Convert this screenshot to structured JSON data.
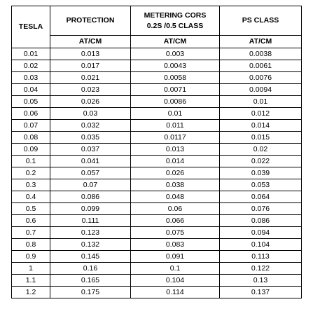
{
  "table": {
    "headers": {
      "tesla": "TESLA",
      "protection": "PROTECTION",
      "metering_line1": "METERING CORS",
      "metering_line2": "0.2S /0.5 CLASS",
      "ps_class": "PS CLASS"
    },
    "units": {
      "protection": "AT/CM",
      "metering": "AT/CM",
      "ps_class": "AT/CM"
    },
    "rows": [
      {
        "tesla": "0.01",
        "protection": "0.013",
        "metering": "0.003",
        "ps": "0.0038"
      },
      {
        "tesla": "0.02",
        "protection": "0.017",
        "metering": "0.0043",
        "ps": "0.0061"
      },
      {
        "tesla": "0.03",
        "protection": "0.021",
        "metering": "0.0058",
        "ps": "0.0076"
      },
      {
        "tesla": "0.04",
        "protection": "0.023",
        "metering": "0.0071",
        "ps": "0.0094"
      },
      {
        "tesla": "0.05",
        "protection": "0.026",
        "metering": "0.0086",
        "ps": "0.01"
      },
      {
        "tesla": "0.06",
        "protection": "0.03",
        "metering": "0.01",
        "ps": "0.012"
      },
      {
        "tesla": "0.07",
        "protection": "0.032",
        "metering": "0.011",
        "ps": "0.014"
      },
      {
        "tesla": "0.08",
        "protection": "0.035",
        "metering": "0.0117",
        "ps": "0.015"
      },
      {
        "tesla": "0.09",
        "protection": "0.037",
        "metering": "0.013",
        "ps": "0.02"
      },
      {
        "tesla": "0.1",
        "protection": "0.041",
        "metering": "0.014",
        "ps": "0.022"
      },
      {
        "tesla": "0.2",
        "protection": "0.057",
        "metering": "0.026",
        "ps": "0.039"
      },
      {
        "tesla": "0.3",
        "protection": "0.07",
        "metering": "0.038",
        "ps": "0.053"
      },
      {
        "tesla": "0.4",
        "protection": "0.086",
        "metering": "0.048",
        "ps": "0.064"
      },
      {
        "tesla": "0.5",
        "protection": "0.099",
        "metering": "0.06",
        "ps": "0.076"
      },
      {
        "tesla": "0.6",
        "protection": "0.111",
        "metering": "0.066",
        "ps": "0.086"
      },
      {
        "tesla": "0.7",
        "protection": "0.123",
        "metering": "0.075",
        "ps": "0.094"
      },
      {
        "tesla": "0.8",
        "protection": "0.132",
        "metering": "0.083",
        "ps": "0.104"
      },
      {
        "tesla": "0.9",
        "protection": "0.145",
        "metering": "0.091",
        "ps": "0.113"
      },
      {
        "tesla": "1",
        "protection": "0.16",
        "metering": "0.1",
        "ps": "0.122"
      },
      {
        "tesla": "1.1",
        "protection": "0.165",
        "metering": "0.104",
        "ps": "0.13"
      },
      {
        "tesla": "1.2",
        "protection": "0.175",
        "metering": "0.114",
        "ps": "0.137"
      }
    ]
  }
}
